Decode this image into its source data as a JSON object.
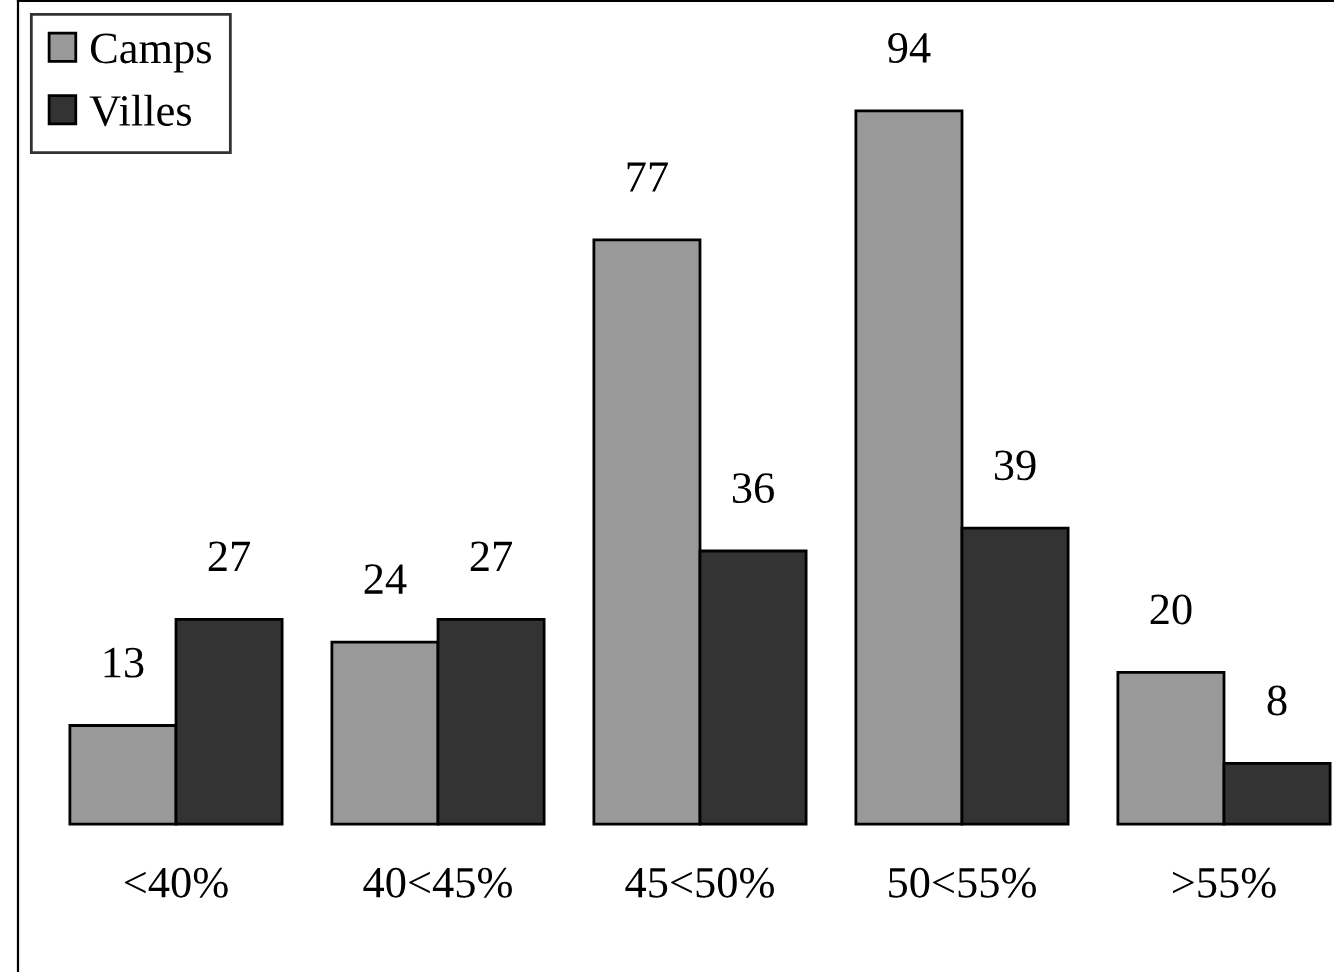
{
  "chart_data": {
    "type": "bar",
    "categories": [
      "<40%",
      "40<45%",
      "45<50%",
      "50<55%",
      ">55%"
    ],
    "series": [
      {
        "name": "Camps",
        "color": "#999999",
        "values": [
          13,
          24,
          77,
          94,
          20
        ]
      },
      {
        "name": "Villes",
        "color": "#333333",
        "values": [
          27,
          27,
          36,
          39,
          8
        ]
      }
    ],
    "data_labels": true,
    "legend": "top left",
    "grid": false
  }
}
